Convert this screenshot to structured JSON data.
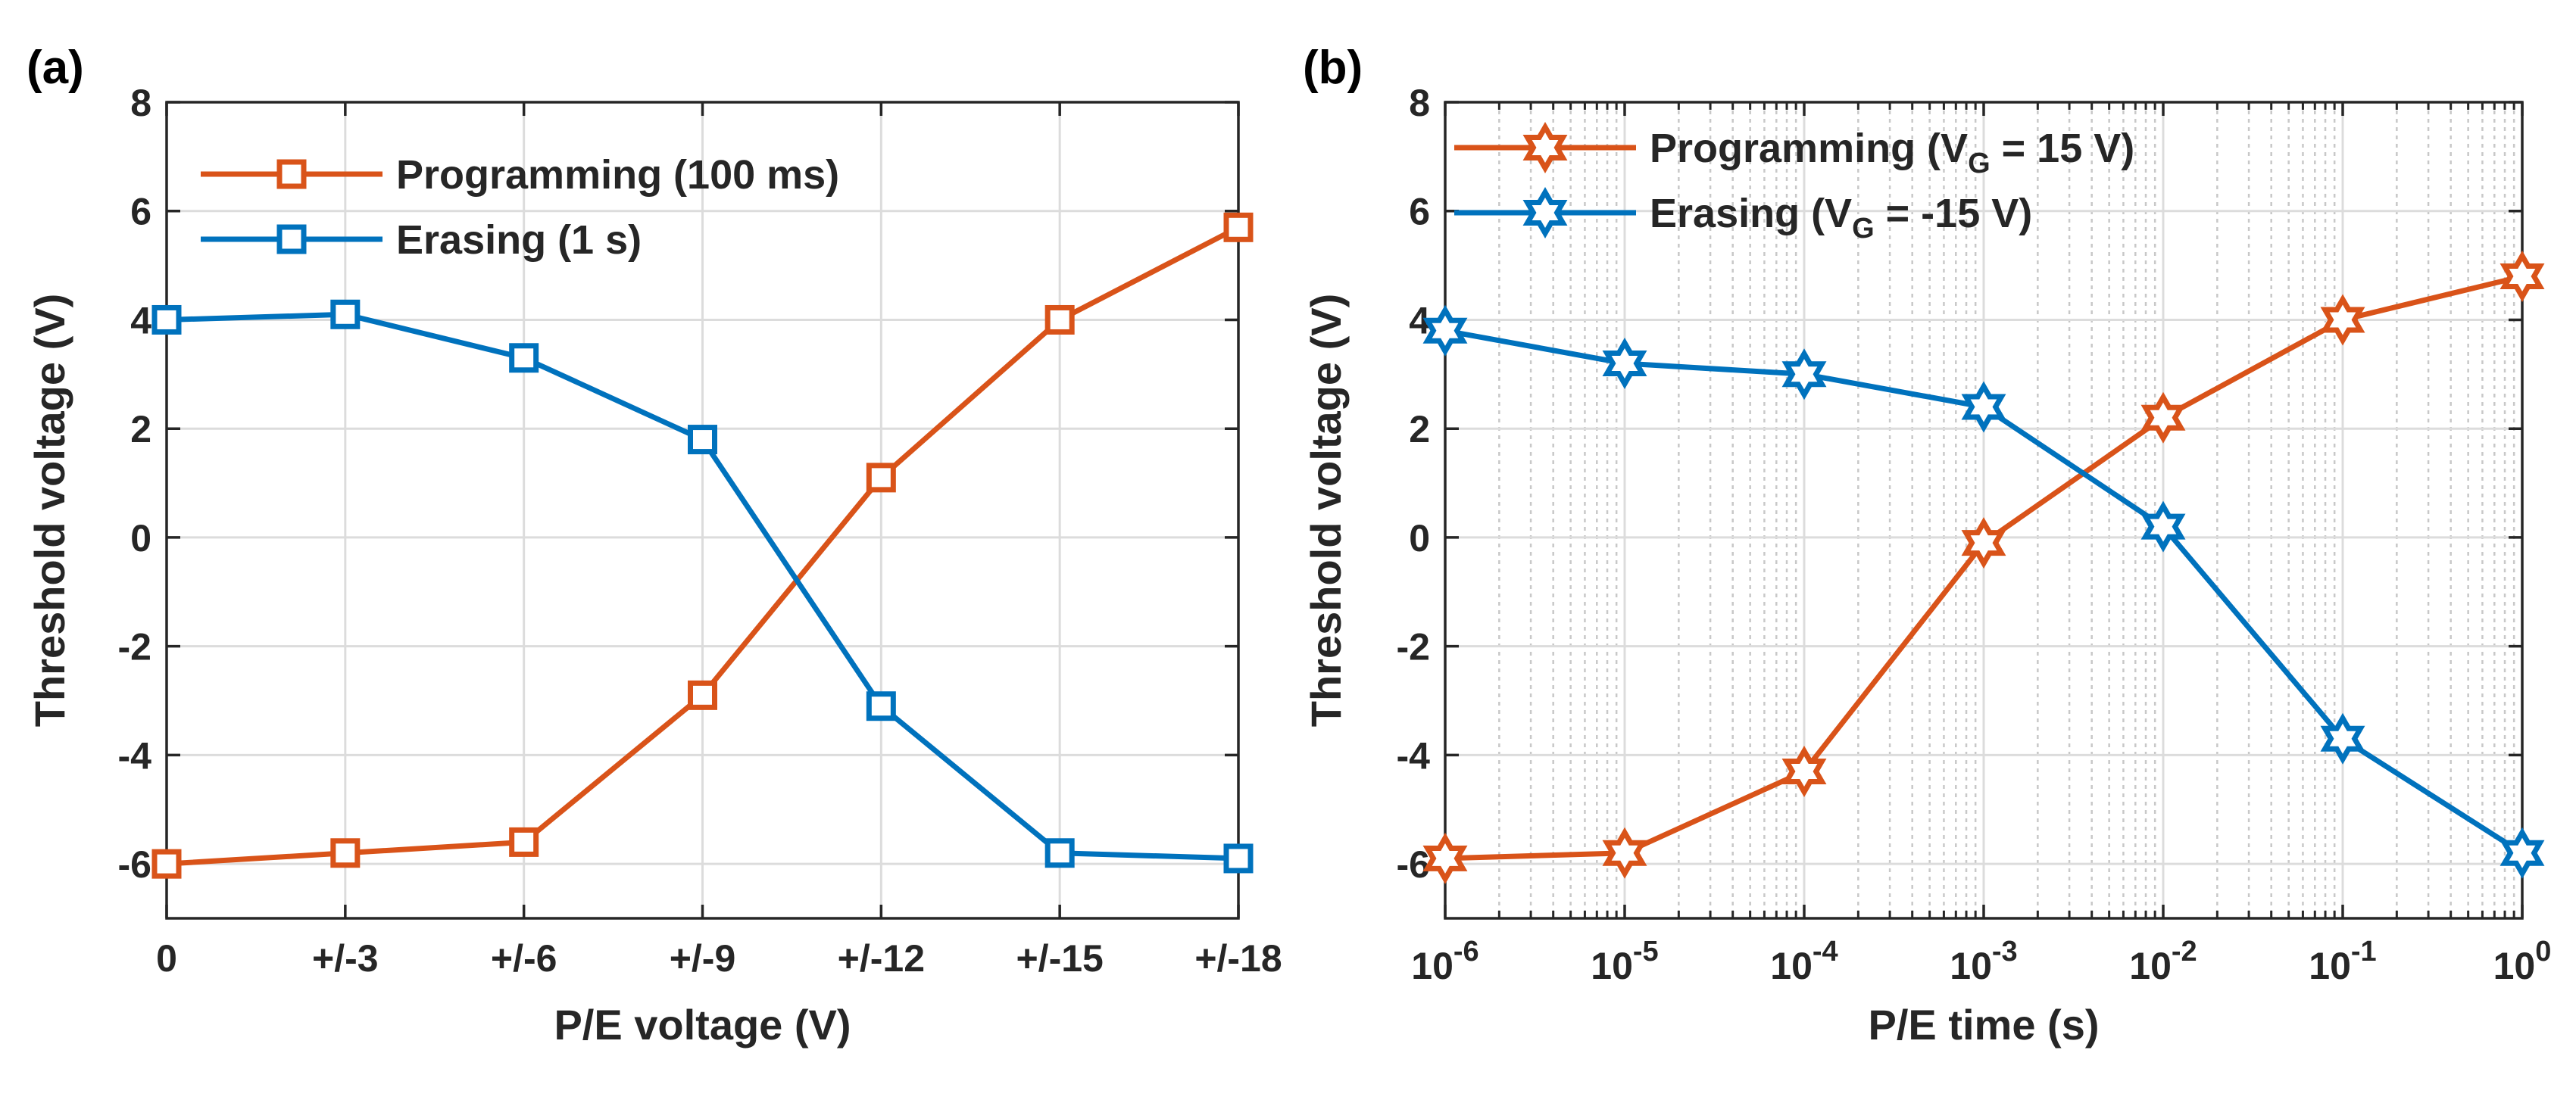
{
  "figure": {
    "domain": "Chart"
  },
  "chart_data": [
    {
      "type": "line",
      "panel_label": "(a)",
      "xlabel": "P/E voltage (V)",
      "ylabel": "Threshold voltage (V)",
      "categories": [
        "0",
        "+/-3",
        "+/-6",
        "+/-9",
        "+/-12",
        "+/-15",
        "+/-18"
      ],
      "ylim": [
        -7,
        8
      ],
      "yticks": [
        -6,
        -4,
        -2,
        0,
        2,
        4,
        6,
        8
      ],
      "grid": true,
      "legend_position": "top-left",
      "marker": "square",
      "series": [
        {
          "name": "Programming (100 ms)",
          "color": "#D95319",
          "values": [
            -6.0,
            -5.8,
            -5.6,
            -2.9,
            1.1,
            4.0,
            5.7
          ]
        },
        {
          "name": "Erasing (1 s)",
          "color": "#0072BD",
          "values": [
            4.0,
            4.1,
            3.3,
            1.8,
            -3.1,
            -5.8,
            -5.9
          ]
        }
      ]
    },
    {
      "type": "line",
      "panel_label": "(b)",
      "xlabel": "P/E time (s)",
      "ylabel": "Threshold voltage (V)",
      "xscale": "log",
      "x_exponents": [
        -6,
        -5,
        -4,
        -3,
        -2,
        -1,
        0
      ],
      "x_tick_base": "10",
      "x_tick_exponents": [
        "-6",
        "-5",
        "-4",
        "-3",
        "-2",
        "-1",
        "0"
      ],
      "ylim": [
        -7,
        8
      ],
      "yticks": [
        -6,
        -4,
        -2,
        0,
        2,
        4,
        6,
        8
      ],
      "grid": true,
      "minor_grid": true,
      "legend_position": "top-left",
      "marker": "hexagram",
      "series": [
        {
          "name": "Programming (V_G = 15 V)",
          "label_prefix": "Programming (V",
          "label_sub": "G",
          "label_suffix": " = 15 V)",
          "color": "#D95319",
          "values": [
            -5.9,
            -5.8,
            -4.3,
            -0.1,
            2.2,
            4.0,
            4.8
          ]
        },
        {
          "name": "Erasing (V_G = -15 V)",
          "label_prefix": "Erasing (V",
          "label_sub": "G",
          "label_suffix": " = -15 V)",
          "color": "#0072BD",
          "values": [
            3.8,
            3.2,
            3.0,
            2.4,
            0.2,
            -3.7,
            -5.8
          ]
        }
      ]
    }
  ]
}
